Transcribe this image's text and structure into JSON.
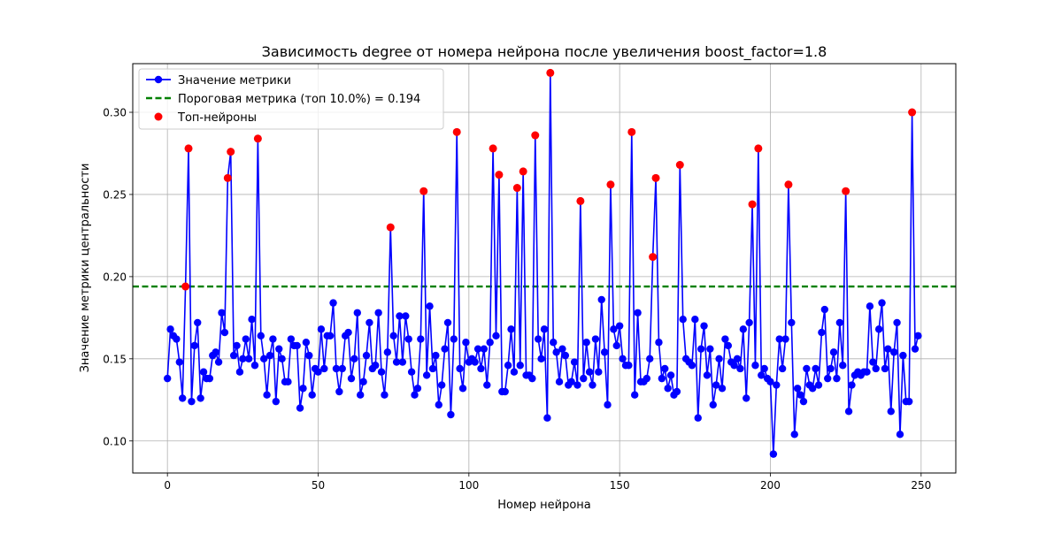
{
  "chart_data": {
    "type": "line",
    "title": "Зависимость degree от номера нейрона после увеличения boost_factor=1.8",
    "xlabel": "Номер нейрона",
    "ylabel": "Значение метрики центральности",
    "xlim": [
      -11.5,
      261.5
    ],
    "ylim": [
      0.0805,
      0.3296
    ],
    "x_ticks": [
      0,
      50,
      100,
      150,
      200,
      250
    ],
    "y_ticks": [
      0.1,
      0.15,
      0.2,
      0.25,
      0.3
    ],
    "grid": true,
    "legend_position": "top-left",
    "threshold": 0.194,
    "colors": {
      "line": "#0000ff",
      "threshold": "#008000",
      "top": "#ff0000"
    },
    "series": [
      {
        "name": "Значение метрики",
        "color": "#0000ff"
      },
      {
        "name": "Пороговая метрика (топ 10.0%) = 0.194",
        "color": "#008000"
      },
      {
        "name": "Топ-нейроны",
        "color": "#ff0000"
      }
    ],
    "values": [
      0.138,
      0.168,
      0.164,
      0.162,
      0.148,
      0.126,
      0.194,
      0.278,
      0.124,
      0.158,
      0.172,
      0.126,
      0.142,
      0.138,
      0.138,
      0.152,
      0.154,
      0.148,
      0.178,
      0.166,
      0.26,
      0.276,
      0.152,
      0.158,
      0.142,
      0.15,
      0.162,
      0.15,
      0.174,
      0.146,
      0.284,
      0.164,
      0.15,
      0.128,
      0.152,
      0.162,
      0.124,
      0.156,
      0.15,
      0.136,
      0.136,
      0.162,
      0.158,
      0.158,
      0.12,
      0.132,
      0.16,
      0.152,
      0.128,
      0.144,
      0.142,
      0.168,
      0.144,
      0.164,
      0.164,
      0.184,
      0.144,
      0.13,
      0.144,
      0.164,
      0.166,
      0.138,
      0.15,
      0.178,
      0.128,
      0.136,
      0.152,
      0.172,
      0.144,
      0.146,
      0.178,
      0.142,
      0.128,
      0.154,
      0.23,
      0.164,
      0.148,
      0.176,
      0.148,
      0.176,
      0.162,
      0.142,
      0.128,
      0.132,
      0.162,
      0.252,
      0.14,
      0.182,
      0.144,
      0.152,
      0.122,
      0.134,
      0.156,
      0.172,
      0.116,
      0.162,
      0.288,
      0.144,
      0.132,
      0.16,
      0.148,
      0.15,
      0.148,
      0.156,
      0.144,
      0.156,
      0.134,
      0.16,
      0.278,
      0.164,
      0.262,
      0.13,
      0.13,
      0.146,
      0.168,
      0.142,
      0.254,
      0.146,
      0.264,
      0.14,
      0.14,
      0.138,
      0.286,
      0.162,
      0.15,
      0.168,
      0.114,
      0.324,
      0.16,
      0.154,
      0.136,
      0.156,
      0.152,
      0.134,
      0.136,
      0.148,
      0.134,
      0.246,
      0.138,
      0.16,
      0.142,
      0.134,
      0.162,
      0.142,
      0.186,
      0.154,
      0.122,
      0.256,
      0.168,
      0.158,
      0.17,
      0.15,
      0.146,
      0.146,
      0.288,
      0.128,
      0.178,
      0.136,
      0.136,
      0.138,
      0.15,
      0.212,
      0.26,
      0.16,
      0.138,
      0.144,
      0.132,
      0.14,
      0.128,
      0.13,
      0.268,
      0.174,
      0.15,
      0.148,
      0.146,
      0.174,
      0.114,
      0.156,
      0.17,
      0.14,
      0.156,
      0.122,
      0.134,
      0.15,
      0.132,
      0.162,
      0.158,
      0.148,
      0.146,
      0.15,
      0.144,
      0.168,
      0.126,
      0.172,
      0.244,
      0.146,
      0.278,
      0.14,
      0.144,
      0.138,
      0.136,
      0.092,
      0.134,
      0.162,
      0.144,
      0.162,
      0.256,
      0.172,
      0.104,
      0.132,
      0.128,
      0.124,
      0.144,
      0.134,
      0.132,
      0.144,
      0.134,
      0.166,
      0.18,
      0.138,
      0.144,
      0.154,
      0.138,
      0.172,
      0.146,
      0.252,
      0.118,
      0.134,
      0.14,
      0.142,
      0.14,
      0.142,
      0.142,
      0.182,
      0.148,
      0.144,
      0.168,
      0.184,
      0.144,
      0.156,
      0.118,
      0.154,
      0.172,
      0.104,
      0.152,
      0.124,
      0.124,
      0.3,
      0.156,
      0.164
    ]
  }
}
